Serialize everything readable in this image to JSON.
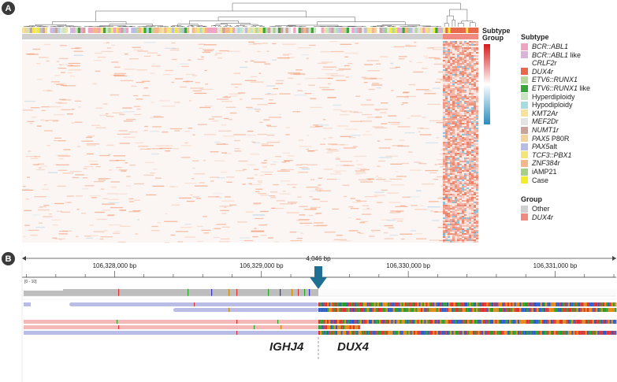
{
  "panels": {
    "a": "A",
    "b": "B"
  },
  "heatmap": {
    "annotation_titles": [
      "Subtype",
      "Group"
    ]
  },
  "legend": {
    "subtype_title": "Subtype",
    "subtypes": [
      {
        "parts": [
          {
            "t": "BCR::ABL1",
            "i": true
          }
        ],
        "color": "#f0a3c2"
      },
      {
        "parts": [
          {
            "t": "BCR::ABL1",
            "i": true
          },
          {
            "t": " like",
            "i": false
          }
        ],
        "color": "#d9b3d9"
      },
      {
        "parts": [
          {
            "t": "CRLF2r",
            "i": true
          }
        ],
        "color": "#ffffff"
      },
      {
        "parts": [
          {
            "t": "DUX4r",
            "i": true
          }
        ],
        "color": "#e8684a"
      },
      {
        "parts": [
          {
            "t": "ETV6::RUNX1",
            "i": true
          }
        ],
        "color": "#b5d99c"
      },
      {
        "parts": [
          {
            "t": "ETV6::RUNX1",
            "i": true
          },
          {
            "t": " like",
            "i": false
          }
        ],
        "color": "#3aa53a"
      },
      {
        "parts": [
          {
            "t": "Hyperdiploidy",
            "i": false
          }
        ],
        "color": "#c7e6c1"
      },
      {
        "parts": [
          {
            "t": "Hypodiploidy",
            "i": false
          }
        ],
        "color": "#a8dbe0"
      },
      {
        "parts": [
          {
            "t": "KMT2Ar",
            "i": true
          }
        ],
        "color": "#f7e29c"
      },
      {
        "parts": [
          {
            "t": "MEF2Dr",
            "i": true
          }
        ],
        "color": "#e3e3e3"
      },
      {
        "parts": [
          {
            "t": "NUMT1r",
            "i": true
          }
        ],
        "color": "#c9a29a"
      },
      {
        "parts": [
          {
            "t": "PAX5",
            "i": true
          },
          {
            "t": " P80R",
            "i": false
          }
        ],
        "color": "#f2d39c"
      },
      {
        "parts": [
          {
            "t": "PAX5",
            "i": true
          },
          {
            "t": "alt",
            "i": false
          }
        ],
        "color": "#b9bde6"
      },
      {
        "parts": [
          {
            "t": "TCF3::PBX1",
            "i": true
          }
        ],
        "color": "#f4e57a"
      },
      {
        "parts": [
          {
            "t": "ZNF384r",
            "i": true
          }
        ],
        "color": "#f5b78a"
      },
      {
        "parts": [
          {
            "t": "iAMP21",
            "i": false
          }
        ],
        "color": "#a6cf8a"
      },
      {
        "parts": [
          {
            "t": "Case",
            "i": false
          }
        ],
        "color": "#f2ec2a"
      }
    ],
    "group_title": "Group",
    "groups": [
      {
        "parts": [
          {
            "t": "Other",
            "i": false
          }
        ],
        "color": "#cfcfcf"
      },
      {
        "parts": [
          {
            "t": "DUX4r",
            "i": true
          }
        ],
        "color": "#f08a80"
      }
    ],
    "colorbar": {
      "high": "#d7191c",
      "mid": "#ffffff",
      "low": "#2b8cbe"
    }
  },
  "genome": {
    "ticks": [
      {
        "label": "106,328,000 bp",
        "x": 106328000
      },
      {
        "label": "106,329,000 bp",
        "x": 106329000
      },
      {
        "label": "106,330,000 bp",
        "x": 106330000
      },
      {
        "label": "106,331,000 bp",
        "x": 106331000
      }
    ],
    "span_label": "4,046 bp",
    "coverage_range": "[0 - 10]",
    "genes": {
      "left": "IGHJ4",
      "right": "DUX4"
    }
  }
}
